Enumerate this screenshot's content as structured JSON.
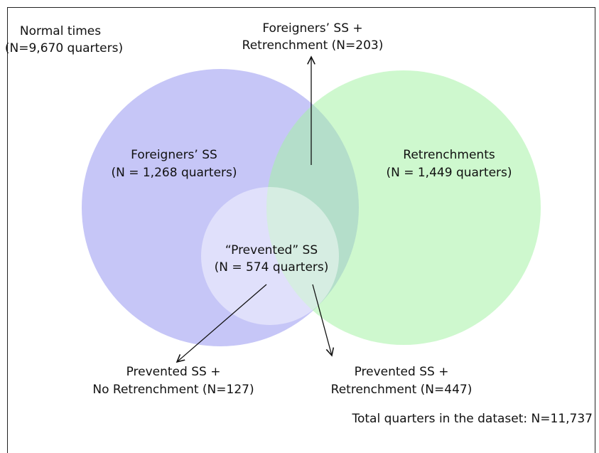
{
  "normal_times": {
    "lines": [
      "Normal times",
      "(N=9,670 quarters)"
    ]
  },
  "overlap_top": {
    "lines": [
      "Foreigners’ SS +",
      "Retrenchment (N=203)"
    ]
  },
  "foreigners_ss": {
    "lines": [
      "Foreigners’ SS",
      "(N = 1,268 quarters)"
    ]
  },
  "retrenchments": {
    "lines": [
      "Retrenchments",
      "(N = 1,449 quarters)"
    ]
  },
  "prevented_ss": {
    "lines": [
      "“Prevented” SS",
      "(N = 574 quarters)"
    ]
  },
  "prevented_no_retrenchment": {
    "lines": [
      "Prevented SS +",
      "No Retrenchment (N=127)"
    ]
  },
  "prevented_retrenchment": {
    "lines": [
      "Prevented SS +",
      "Retrenchment (N=447)"
    ]
  },
  "total": "Total quarters in the dataset: N=11,737"
}
